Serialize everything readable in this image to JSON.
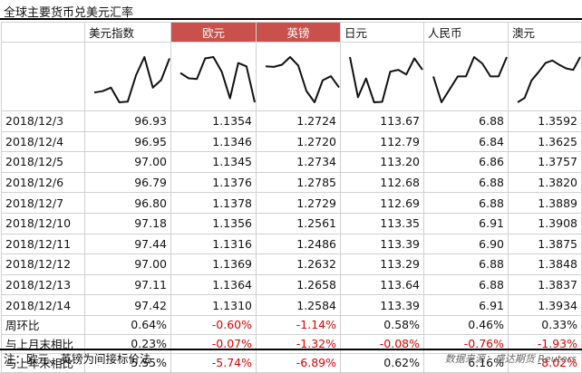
{
  "title": "全球主要货币兑美元汇率",
  "columns": [
    "美元指数",
    "欧元",
    "英镑",
    "日元",
    "人民币",
    "澳元"
  ],
  "highlight_columns": [
    1,
    2
  ],
  "rows": [
    {
      "date": "2018/12/3",
      "values": [
        "96.93",
        "1.1354",
        "1.2724",
        "113.67",
        "6.88",
        "1.3592"
      ]
    },
    {
      "date": "2018/12/4",
      "values": [
        "96.95",
        "1.1346",
        "1.2720",
        "112.79",
        "6.84",
        "1.3625"
      ]
    },
    {
      "date": "2018/12/5",
      "values": [
        "97.00",
        "1.1345",
        "1.2734",
        "113.20",
        "6.86",
        "1.3757"
      ]
    },
    {
      "date": "2018/12/6",
      "values": [
        "96.79",
        "1.1376",
        "1.2785",
        "112.68",
        "6.88",
        "1.3820"
      ]
    },
    {
      "date": "2018/12/7",
      "values": [
        "96.80",
        "1.1378",
        "1.2729",
        "112.69",
        "6.88",
        "1.3889"
      ]
    },
    {
      "date": "2018/12/10",
      "values": [
        "97.18",
        "1.1356",
        "1.2561",
        "113.35",
        "6.91",
        "1.3908"
      ]
    },
    {
      "date": "2018/12/11",
      "values": [
        "97.44",
        "1.1316",
        "1.2486",
        "113.39",
        "6.90",
        "1.3875"
      ]
    },
    {
      "date": "2018/12/12",
      "values": [
        "97.00",
        "1.1369",
        "1.2632",
        "113.29",
        "6.88",
        "1.3848"
      ]
    },
    {
      "date": "2018/12/13",
      "values": [
        "97.11",
        "1.1364",
        "1.2658",
        "113.64",
        "6.88",
        "1.3837"
      ]
    },
    {
      "date": "2018/12/14",
      "values": [
        "97.42",
        "1.1310",
        "1.2584",
        "113.39",
        "6.91",
        "1.3934"
      ]
    }
  ],
  "summary": [
    {
      "label": "周环比",
      "values": [
        "0.64%",
        "-0.60%",
        "-1.14%",
        "0.58%",
        "0.46%",
        "0.33%"
      ]
    },
    {
      "label": "与上月末相比",
      "values": [
        "0.23%",
        "-0.07%",
        "-1.32%",
        "-0.08%",
        "-0.76%",
        "-1.93%"
      ]
    },
    {
      "label": "与上年末相比",
      "values": [
        "5.55%",
        "-5.74%",
        "-6.89%",
        "0.62%",
        "6.16%",
        "-8.02%"
      ]
    }
  ],
  "colors": {
    "highlight_bg": "#c9504b",
    "negative": "#dd0000",
    "spark": "#111111",
    "grid": "#d0d0d0"
  },
  "footnote": "注：欧元、英镑为间接标价法",
  "source": "数据来源：盛达期货  Reuters"
}
